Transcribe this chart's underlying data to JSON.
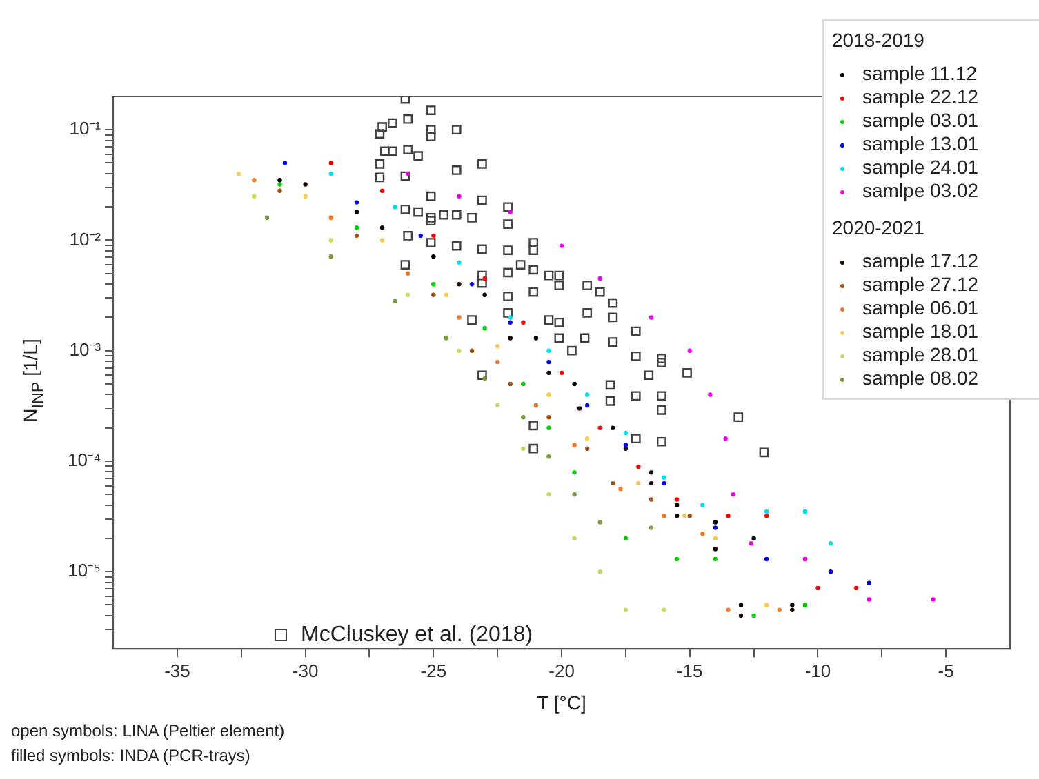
{
  "chart_data": {
    "type": "scatter",
    "xlabel": "T [°C]",
    "ylabel": "N$_{INP}$ [1/L]",
    "legend_title": "2018-2019",
    "annotations": [
      "2020-2021",
      "open symbols: LINA (Peltier element)",
      "filled symbols: INDA (PCR-trays)"
    ],
    "legend": "right",
    "grid": false,
    "log": "y",
    "marker": "circle",
    "xlim": [
      -37.5,
      -2.5
    ],
    "xticks": [
      -35,
      {
        "value": -32.5,
        "label": null
      },
      -30,
      {
        "value": -27.5,
        "label": null
      },
      -25,
      {
        "value": -22.5,
        "label": null
      },
      -20,
      {
        "value": -17.5,
        "label": null
      },
      -15,
      {
        "value": -12.5,
        "label": null
      },
      -10,
      {
        "value": -7.5,
        "label": null
      },
      -5
    ],
    "ylim": [
      2e-06,
      0.2
    ],
    "yticks": [
      {
        "value": 3e-06,
        "label": null
      },
      {
        "value": 4e-06,
        "label": null
      },
      {
        "value": 5e-06,
        "label": null
      },
      {
        "value": 6e-06,
        "label": null
      },
      {
        "value": 7e-06,
        "label": null
      },
      {
        "value": 8e-06,
        "label": null
      },
      {
        "value": 9e-06,
        "label": null
      },
      {
        "value": 1e-05,
        "label": "10⁻⁵"
      },
      {
        "value": 2e-05,
        "label": null
      },
      {
        "value": 3e-05,
        "label": null
      },
      {
        "value": 4e-05,
        "label": null
      },
      {
        "value": 5e-05,
        "label": null
      },
      {
        "value": 6e-05,
        "label": null
      },
      {
        "value": 7e-05,
        "label": null
      },
      {
        "value": 8e-05,
        "label": null
      },
      {
        "value": 9e-05,
        "label": null
      },
      {
        "value": 0.0001,
        "label": "10⁻⁴"
      },
      {
        "value": 0.0002,
        "label": null
      },
      {
        "value": 0.0003,
        "label": null
      },
      {
        "value": 0.0004,
        "label": null
      },
      {
        "value": 0.0005,
        "label": null
      },
      {
        "value": 0.0006,
        "label": null
      },
      {
        "value": 0.0007,
        "label": null
      },
      {
        "value": 0.0008,
        "label": null
      },
      {
        "value": 0.0009,
        "label": null
      },
      {
        "value": 0.001,
        "label": "10⁻³"
      },
      {
        "value": 0.002,
        "label": null
      },
      {
        "value": 0.003,
        "label": null
      },
      {
        "value": 0.004,
        "label": null
      },
      {
        "value": 0.005,
        "label": null
      },
      {
        "value": 0.006,
        "label": null
      },
      {
        "value": 0.007,
        "label": null
      },
      {
        "value": 0.008,
        "label": null
      },
      {
        "value": 0.009,
        "label": null
      },
      {
        "value": 0.01,
        "label": "10⁻²"
      },
      {
        "value": 0.02,
        "label": null
      },
      {
        "value": 0.03,
        "label": null
      },
      {
        "value": 0.04,
        "label": null
      },
      {
        "value": 0.05,
        "label": null
      },
      {
        "value": 0.06,
        "label": null
      },
      {
        "value": 0.07,
        "label": null
      },
      {
        "value": 0.08,
        "label": null
      },
      {
        "value": 0.09,
        "label": null
      },
      {
        "value": 0.1,
        "label": "10⁻¹"
      }
    ],
    "series": [
      {
        "name": "sample 11.12",
        "color": "#000000",
        "x": [
          -31,
          -28,
          -25,
          -23,
          -21,
          -19.5,
          -18,
          -16.5,
          -15.5,
          -14,
          -12.5,
          -13,
          -11
        ],
        "values": [
          0.035,
          0.018,
          0.0071,
          0.0032,
          0.0013,
          0.0005,
          0.0002,
          7.9e-05,
          4e-05,
          2.8e-05,
          2e-05,
          5e-06,
          5e-06
        ]
      },
      {
        "name": "sample 22.12",
        "color": "#ff0000",
        "x": [
          -29,
          -27,
          -25,
          -23,
          -21.5,
          -20,
          -18.5,
          -17,
          -15.5,
          -13.5,
          -12,
          -10,
          -8.5
        ],
        "values": [
          0.05,
          0.028,
          0.011,
          0.0045,
          0.0018,
          0.00063,
          0.0002,
          8.9e-05,
          4.5e-05,
          3.2e-05,
          3.2e-05,
          7.1e-06,
          7.1e-06
        ]
      },
      {
        "name": "sample 03.01",
        "color": "#00cc00",
        "x": [
          -31,
          -28,
          -25,
          -23,
          -21.5,
          -20.5,
          -19.5,
          -17.5,
          -15.5,
          -14,
          -12.5,
          -10.5
        ],
        "values": [
          0.032,
          0.013,
          0.004,
          0.0016,
          0.0005,
          0.0002,
          7.9e-05,
          2e-05,
          1.3e-05,
          1.3e-05,
          4e-06,
          5e-06
        ]
      },
      {
        "name": "sample 13.01",
        "color": "#0000ee",
        "x": [
          -30.8,
          -28,
          -25.5,
          -23.5,
          -22,
          -20.5,
          -19,
          -17.5,
          -16,
          -14,
          -12,
          -9.5,
          -8
        ],
        "values": [
          0.05,
          0.022,
          0.011,
          0.004,
          0.0018,
          0.00079,
          0.00032,
          0.00014,
          6.3e-05,
          2.5e-05,
          1.3e-05,
          1e-05,
          7.9e-06
        ]
      },
      {
        "name": "sample 24.01",
        "color": "#00e0f0",
        "x": [
          -29,
          -26.5,
          -24,
          -22,
          -20.5,
          -19,
          -17.5,
          -16,
          -14.5,
          -12,
          -10.5,
          -9.5
        ],
        "values": [
          0.04,
          0.02,
          0.0063,
          0.002,
          0.001,
          0.0004,
          0.00018,
          7.1e-05,
          4e-05,
          3.5e-05,
          3.5e-05,
          1.8e-05
        ]
      },
      {
        "name": "samlpe 03.02",
        "color": "#ee00ee",
        "x": [
          -26,
          -24,
          -22,
          -20,
          -18.5,
          -16.5,
          -15,
          -14.2,
          -13.6,
          -13.3,
          -12.6,
          -10.5,
          -8,
          -5.5
        ],
        "values": [
          0.04,
          0.025,
          0.018,
          0.0089,
          0.0045,
          0.002,
          0.001,
          0.0004,
          0.00016,
          5e-05,
          1.8e-05,
          1.3e-05,
          5.6e-06,
          5.6e-06
        ]
      },
      {
        "name": "sample 17.12",
        "color": "#1a0800",
        "x": [
          -30,
          -27,
          -24,
          -22,
          -20.5,
          -19.3,
          -17.5,
          -16.5,
          -15.5,
          -14,
          -13,
          -11
        ],
        "values": [
          0.032,
          0.013,
          0.004,
          0.0013,
          0.00063,
          0.0003,
          0.00013,
          6.3e-05,
          3.2e-05,
          1.6e-05,
          4e-06,
          4.5e-06
        ]
      },
      {
        "name": "sample 27.12",
        "color": "#a0501a",
        "x": [
          -31,
          -28,
          -25,
          -23.5,
          -22,
          -20.5,
          -19,
          -18,
          -16.5,
          -15
        ],
        "values": [
          0.028,
          0.011,
          0.0032,
          0.001,
          0.0005,
          0.00025,
          0.00013,
          6.3e-05,
          4.5e-05,
          3.2e-05
        ]
      },
      {
        "name": "sample 06.01",
        "color": "#f07820",
        "x": [
          -32,
          -29,
          -26,
          -24,
          -22.5,
          -21,
          -19.5,
          -17.7,
          -16,
          -14.5,
          -13.5,
          -11.5
        ],
        "values": [
          0.035,
          0.016,
          0.005,
          0.002,
          0.00079,
          0.00032,
          0.00014,
          5.6e-05,
          3.2e-05,
          2.2e-05,
          4.5e-06,
          4.5e-06
        ]
      },
      {
        "name": "sample 18.01",
        "color": "#f8c850",
        "x": [
          -32.6,
          -30,
          -27,
          -24.5,
          -22.5,
          -20.5,
          -19,
          -17,
          -15.2,
          -14,
          -12
        ],
        "values": [
          0.04,
          0.025,
          0.01,
          0.0032,
          0.0011,
          0.0004,
          0.00016,
          6.3e-05,
          3.2e-05,
          2e-05,
          5e-06
        ]
      },
      {
        "name": "sample 28.01",
        "color": "#c8d860",
        "x": [
          -32,
          -29,
          -26,
          -24,
          -22.5,
          -21.5,
          -20.5,
          -19.5,
          -18.5,
          -17.5,
          -16
        ],
        "values": [
          0.025,
          0.01,
          0.0032,
          0.001,
          0.00032,
          0.00013,
          5e-05,
          2e-05,
          1e-05,
          4.5e-06,
          4.5e-06
        ]
      },
      {
        "name": "sample 08.02",
        "color": "#7a9a40",
        "x": [
          -31.5,
          -29,
          -26.5,
          -24.5,
          -23,
          -21.5,
          -20.5,
          -19.5,
          -18.5,
          -16.5
        ],
        "values": [
          0.016,
          0.0071,
          0.0028,
          0.0013,
          0.00056,
          0.00025,
          0.00011,
          5e-05,
          2.8e-05,
          2.5e-05
        ]
      },
      {
        "name": "McCluskey et al. (2018)",
        "color": "#404040",
        "marker": "square",
        "x": [
          -26.1,
          -25.1,
          -26.0,
          -26.6,
          -27.0,
          -27.1,
          -25.1,
          -25.1,
          -24.1,
          -26.9,
          -26.6,
          -26.0,
          -25.6,
          -27.1,
          -27.1,
          -26.1,
          -24.1,
          -25.1,
          -26.1,
          -25.6,
          -25.1,
          -24.6,
          -24.1,
          -25.1,
          -26.0,
          -25.1,
          -24.1,
          -26.1,
          -23.1,
          -23.1,
          -22.1,
          -22.1,
          -23.5,
          -23.1,
          -22.1,
          -21.1,
          -21.1,
          -21.6,
          -22.1,
          -21.1,
          -20.5,
          -20.1,
          -20.1,
          -19.0,
          -21.1,
          -23.1,
          -23.1,
          -22.1,
          -18.5,
          -18.0,
          -19.0,
          -18.0,
          -20.5,
          -20.1,
          -17.1,
          -22.1,
          -20.1,
          -19.1,
          -18.0,
          -17.1,
          -16.1,
          -19.6,
          -23.5,
          -23.1,
          -18.1,
          -18.1,
          -17.1,
          -16.1,
          -16.1,
          -17.1,
          -16.1,
          -15.1,
          -13.1,
          -12.1,
          -21.1,
          -21.1,
          -16.6,
          -16.1
        ],
        "values": [
          0.19,
          0.15,
          0.125,
          0.115,
          0.106,
          0.092,
          0.1,
          0.087,
          0.1,
          0.064,
          0.064,
          0.066,
          0.058,
          0.049,
          0.037,
          0.038,
          0.043,
          0.025,
          0.019,
          0.018,
          0.016,
          0.017,
          0.017,
          0.015,
          0.011,
          0.0095,
          0.0089,
          0.006,
          0.049,
          0.023,
          0.02,
          0.014,
          0.016,
          0.0083,
          0.0081,
          0.0095,
          0.0081,
          0.006,
          0.0051,
          0.0054,
          0.0048,
          0.0048,
          0.0039,
          0.0039,
          0.0034,
          0.0048,
          0.0041,
          0.0031,
          0.0034,
          0.0027,
          0.0022,
          0.002,
          0.0019,
          0.0018,
          0.0015,
          0.0022,
          0.0013,
          0.0013,
          0.0012,
          0.00089,
          0.00085,
          0.001,
          0.0019,
          0.0006,
          0.00049,
          0.00035,
          0.00039,
          0.00039,
          0.00029,
          0.00016,
          0.00015,
          0.00063,
          0.00025,
          0.00012,
          0.00021,
          0.00013,
          0.0006,
          0.00078
        ]
      }
    ]
  }
}
